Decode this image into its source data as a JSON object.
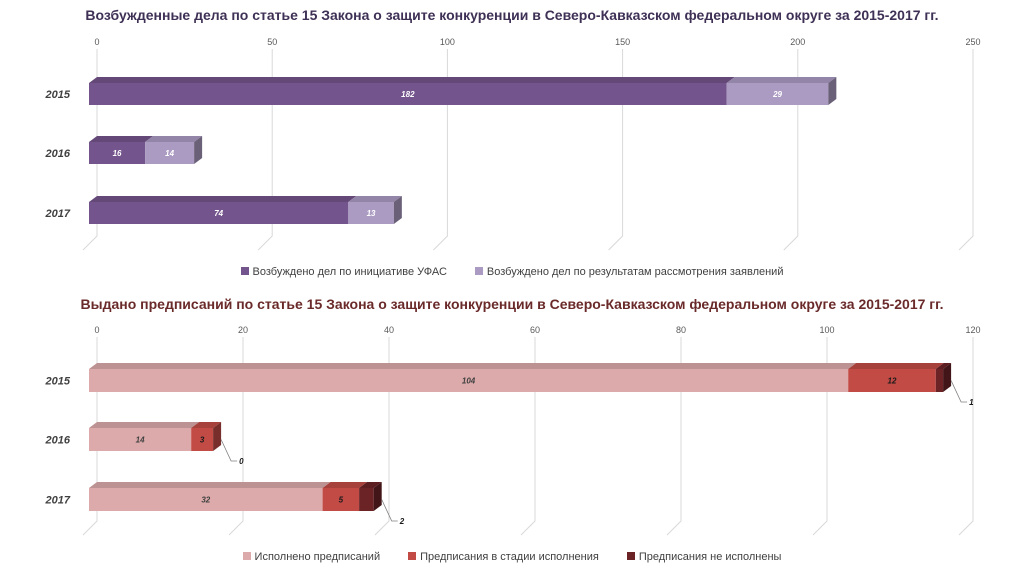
{
  "chart_data": [
    {
      "type": "bar",
      "orientation": "horizontal",
      "stacked": true,
      "title": "Возбужденные дела по статье 15 Закона о защите конкуренции в Северо-Кавказском федеральном округе за 2015-2017 гг.",
      "categories": [
        "2015",
        "2016",
        "2017"
      ],
      "xlim": [
        0,
        250
      ],
      "xticks": [
        "0",
        "50",
        "100",
        "150",
        "200",
        "250"
      ],
      "grid": true,
      "legend_position": "bottom",
      "series": [
        {
          "name": "Возбуждено дел по инициативе УФАС",
          "values": [
            182,
            16,
            74
          ],
          "labels": [
            "182",
            "16",
            "74"
          ],
          "color": "#73548c"
        },
        {
          "name": "Возбуждено дел по результатам рассмотрения заявлений",
          "values": [
            29,
            14,
            13
          ],
          "labels": [
            "29",
            "14",
            "13"
          ],
          "color": "#ab9bc2"
        }
      ]
    },
    {
      "type": "bar",
      "orientation": "horizontal",
      "stacked": true,
      "title": "Выдано предписаний по статье 15 Закона о защите конкуренции в Северо-Кавказском федеральном округе за 2015-2017 гг.",
      "categories": [
        "2015",
        "2016",
        "2017"
      ],
      "xlim": [
        0,
        120
      ],
      "xticks": [
        "0",
        "20",
        "40",
        "60",
        "80",
        "100",
        "120"
      ],
      "grid": true,
      "legend_position": "bottom",
      "series": [
        {
          "name": "Исполнено предписаний",
          "values": [
            104,
            14,
            32
          ],
          "labels": [
            "104",
            "14",
            "32"
          ],
          "color": "#dcaaaa"
        },
        {
          "name": "Предписания в стадии исполнения",
          "values": [
            12,
            3,
            5
          ],
          "labels": [
            "12",
            "3",
            "5"
          ],
          "color": "#c24b46"
        },
        {
          "name": "Предписания не исполнены",
          "values": [
            1,
            0,
            2
          ],
          "labels": [
            "1",
            "0",
            "2"
          ],
          "color": "#6b2326"
        }
      ]
    }
  ]
}
